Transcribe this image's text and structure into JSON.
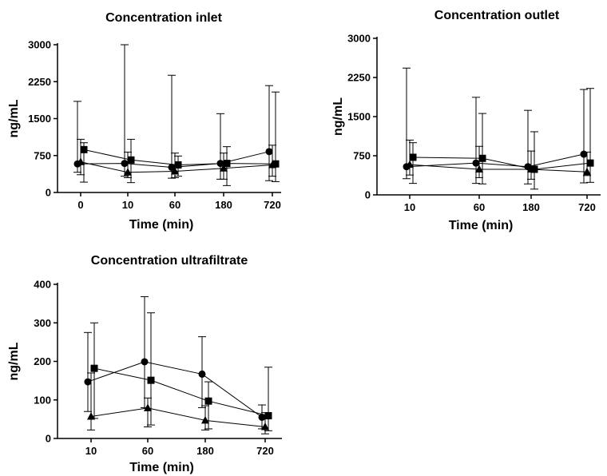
{
  "chart_data": [
    {
      "type": "scatter",
      "title": "Concentration inlet",
      "xlabel": "Time (min)",
      "ylabel": "ng/mL",
      "categories": [
        "0",
        "10",
        "60",
        "180",
        "720"
      ],
      "ylim": [
        0,
        3000
      ],
      "yticks": [
        0,
        750,
        1500,
        2250,
        3000
      ],
      "grid": false,
      "series": [
        {
          "marker": "circle",
          "values": [
            580,
            590,
            510,
            590,
            830
          ],
          "err_low": [
            410,
            330,
            290,
            270,
            240
          ],
          "err_high": [
            1850,
            3000,
            2380,
            1600,
            2170
          ]
        },
        {
          "marker": "triangle",
          "values": [
            620,
            410,
            430,
            490,
            560
          ],
          "err_low": [
            360,
            300,
            300,
            270,
            330
          ],
          "err_high": [
            1080,
            820,
            800,
            800,
            960
          ]
        },
        {
          "marker": "square",
          "values": [
            870,
            660,
            560,
            590,
            580
          ],
          "err_low": [
            210,
            200,
            330,
            140,
            220
          ],
          "err_high": [
            1010,
            1080,
            740,
            930,
            2040
          ]
        }
      ]
    },
    {
      "type": "scatter",
      "title": "Concentration outlet",
      "xlabel": "Time (min)",
      "ylabel": "ng/mL",
      "categories": [
        "10",
        "60",
        "180",
        "720"
      ],
      "ylim": [
        0,
        3000
      ],
      "yticks": [
        0,
        750,
        1500,
        2250,
        3000
      ],
      "grid": false,
      "series": [
        {
          "marker": "circle",
          "values": [
            540,
            610,
            540,
            780
          ],
          "err_low": [
            310,
            220,
            210,
            230
          ],
          "err_high": [
            2430,
            1870,
            1620,
            2020
          ]
        },
        {
          "marker": "triangle",
          "values": [
            580,
            490,
            490,
            440
          ],
          "err_low": [
            380,
            330,
            300,
            370
          ],
          "err_high": [
            1050,
            930,
            840,
            820
          ]
        },
        {
          "marker": "square",
          "values": [
            720,
            700,
            490,
            610
          ],
          "err_low": [
            220,
            210,
            110,
            240
          ],
          "err_high": [
            1000,
            1560,
            1210,
            2040
          ]
        }
      ]
    },
    {
      "type": "scatter",
      "title": "Concentration ultrafiltrate",
      "xlabel": "Time (min)",
      "ylabel": "ng/mL",
      "categories": [
        "10",
        "60",
        "180",
        "720"
      ],
      "ylim": [
        0,
        400
      ],
      "yticks": [
        0,
        100,
        200,
        300,
        400
      ],
      "grid": false,
      "series": [
        {
          "marker": "circle",
          "values": [
            147,
            199,
            167,
            55
          ],
          "err_low": [
            70,
            80,
            80,
            25
          ],
          "err_high": [
            275,
            368,
            264,
            87
          ]
        },
        {
          "marker": "triangle",
          "values": [
            57,
            79,
            47,
            30
          ],
          "err_low": [
            22,
            30,
            22,
            12
          ],
          "err_high": [
            170,
            105,
            85,
            67
          ]
        },
        {
          "marker": "square",
          "values": [
            182,
            151,
            97,
            59
          ],
          "err_low": [
            52,
            35,
            25,
            20
          ],
          "err_high": [
            300,
            326,
            147,
            185
          ]
        }
      ]
    }
  ]
}
